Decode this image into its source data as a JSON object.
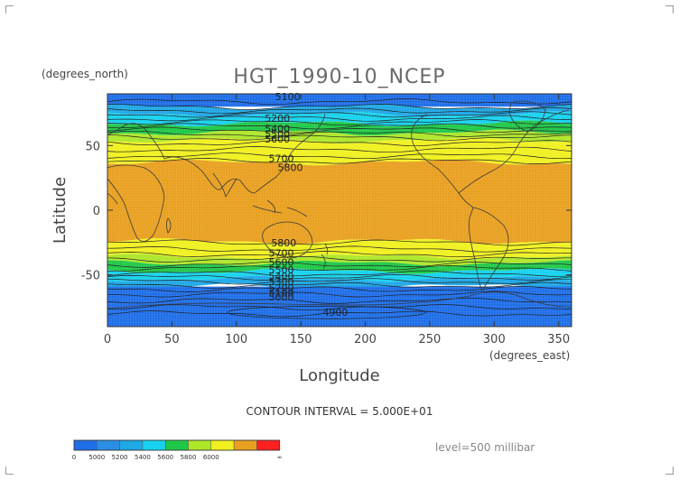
{
  "chart_data": {
    "type": "heatmap",
    "title": "HGT_1990-10_NCEP",
    "xlabel": "Longitude",
    "ylabel": "Latitude",
    "x_units": "(degrees_east)",
    "y_units": "(degrees_north)",
    "xlim": [
      0,
      360
    ],
    "ylim": [
      -90,
      90
    ],
    "x_ticks": [
      0,
      50,
      100,
      150,
      200,
      250,
      300,
      350
    ],
    "y_ticks": [
      50,
      0,
      -50
    ],
    "grid": false,
    "contour_interval_text": "CONTOUR INTERVAL = 5.000E+01",
    "level_text": "level=500 millibar",
    "contour_labels": [
      {
        "text": "5100",
        "x": 130,
        "y": 88
      },
      {
        "text": "5200",
        "x": 122,
        "y": 71
      },
      {
        "text": "5400",
        "x": 122,
        "y": 63
      },
      {
        "text": "5500",
        "x": 122,
        "y": 59
      },
      {
        "text": "5600",
        "x": 122,
        "y": 55
      },
      {
        "text": "5700",
        "x": 125,
        "y": 40
      },
      {
        "text": "5800",
        "x": 132,
        "y": 33
      },
      {
        "text": "5800",
        "x": 127,
        "y": -25
      },
      {
        "text": "5700",
        "x": 125,
        "y": -33
      },
      {
        "text": "5600",
        "x": 125,
        "y": -40
      },
      {
        "text": "5500",
        "x": 125,
        "y": -46
      },
      {
        "text": "5400",
        "x": 125,
        "y": -51
      },
      {
        "text": "5300",
        "x": 125,
        "y": -55
      },
      {
        "text": "5200",
        "x": 125,
        "y": -60
      },
      {
        "text": "5100",
        "x": 125,
        "y": -64
      },
      {
        "text": "5000",
        "x": 125,
        "y": -67
      },
      {
        "text": "4900",
        "x": 167,
        "y": -79
      }
    ],
    "colorbar": {
      "bins": [
        {
          "color": "#1e6ee8",
          "label": "0"
        },
        {
          "color": "#2a8de6",
          "label": "5000"
        },
        {
          "color": "#1ea8e6",
          "label": "5200"
        },
        {
          "color": "#17d2ee",
          "label": "5400"
        },
        {
          "color": "#20c848",
          "label": "5600"
        },
        {
          "color": "#aee62a",
          "label": "5800"
        },
        {
          "color": "#f0f020",
          "label": "6000"
        },
        {
          "color": "#e8a020",
          "label": "∞"
        },
        {
          "color": "#ff2020"
        }
      ]
    },
    "bands": [
      {
        "lat_from": 90,
        "lat_to": 80,
        "color": "#1e6ee8"
      },
      {
        "lat_from": 80,
        "lat_to": 74,
        "color": "#1ea8e6"
      },
      {
        "lat_from": 74,
        "lat_to": 67,
        "color": "#17d2ee"
      },
      {
        "lat_from": 67,
        "lat_to": 60,
        "color": "#20c848"
      },
      {
        "lat_from": 60,
        "lat_to": 54,
        "color": "#aee62a"
      },
      {
        "lat_from": 54,
        "lat_to": 37,
        "color": "#f0f020"
      },
      {
        "lat_from": 37,
        "lat_to": -24,
        "color": "#e8a020"
      },
      {
        "lat_from": -24,
        "lat_to": -36,
        "color": "#f0f020"
      },
      {
        "lat_from": -36,
        "lat_to": -41,
        "color": "#aee62a"
      },
      {
        "lat_from": -41,
        "lat_to": -47,
        "color": "#20c848"
      },
      {
        "lat_from": -47,
        "lat_to": -53,
        "color": "#17d2ee"
      },
      {
        "lat_from": -53,
        "lat_to": -59,
        "color": "#1ea8e6"
      },
      {
        "lat_from": -59,
        "lat_to": -90,
        "color": "#1e6ee8"
      }
    ]
  }
}
